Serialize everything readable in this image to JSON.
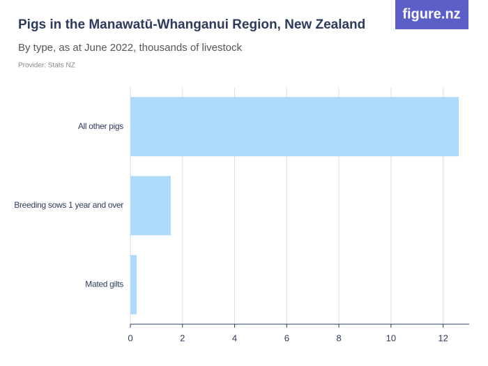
{
  "logo": "figure.nz",
  "chart_data": {
    "type": "bar",
    "orientation": "horizontal",
    "title": "Pigs in the Manawatū-Whanganui Region, New Zealand",
    "subtitle": "By type, as at June 2022, thousands of livestock",
    "source": "Provider: Stats NZ",
    "categories": [
      "All other pigs",
      "Breeding sows 1 year and over",
      "Mated gilts"
    ],
    "values": [
      12.6,
      1.55,
      0.24
    ],
    "color": "#aedafc",
    "xlim": [
      0,
      13
    ],
    "xticks": [
      0,
      2,
      4,
      6,
      8,
      10,
      12
    ],
    "grid": true
  }
}
